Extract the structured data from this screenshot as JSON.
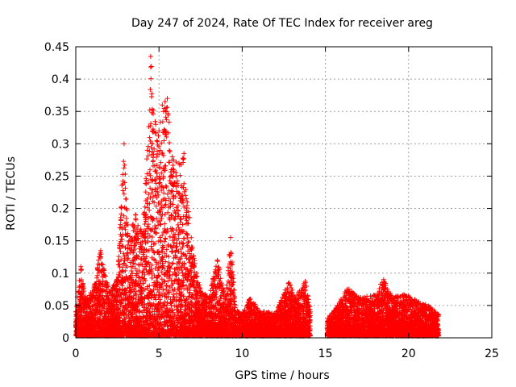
{
  "chart_data": {
    "type": "scatter",
    "title": "Day 247 of 2024, Rate Of TEC Index for receiver areg",
    "xlabel": "GPS time / hours",
    "ylabel": "ROTI / TECUs",
    "xlim": [
      0,
      25
    ],
    "ylim": [
      0,
      0.45
    ],
    "xticks": [
      0,
      5,
      10,
      15,
      20,
      25
    ],
    "yticks": [
      0,
      0.05,
      0.1,
      0.15,
      0.2,
      0.25,
      0.3,
      0.35,
      0.4,
      0.45
    ],
    "grid": true,
    "marker": "plus",
    "marker_color": "#ff0000",
    "envelope": {
      "description_points": [
        [
          0.0,
          0.04
        ],
        [
          0.3,
          0.11
        ],
        [
          0.6,
          0.06
        ],
        [
          1.0,
          0.07
        ],
        [
          1.5,
          0.135
        ],
        [
          2.0,
          0.07
        ],
        [
          2.5,
          0.09
        ],
        [
          2.9,
          0.3
        ],
        [
          3.2,
          0.15
        ],
        [
          3.6,
          0.19
        ],
        [
          4.0,
          0.16
        ],
        [
          4.3,
          0.29
        ],
        [
          4.5,
          0.435
        ],
        [
          4.8,
          0.33
        ],
        [
          5.0,
          0.32
        ],
        [
          5.2,
          0.36
        ],
        [
          5.5,
          0.37
        ],
        [
          5.8,
          0.28
        ],
        [
          6.2,
          0.27
        ],
        [
          6.5,
          0.285
        ],
        [
          7.0,
          0.14
        ],
        [
          7.5,
          0.07
        ],
        [
          8.0,
          0.06
        ],
        [
          8.5,
          0.12
        ],
        [
          9.0,
          0.06
        ],
        [
          9.3,
          0.155
        ],
        [
          9.6,
          0.04
        ],
        [
          10.0,
          0.035
        ],
        [
          10.5,
          0.06
        ],
        [
          11.0,
          0.04
        ],
        [
          12.0,
          0.035
        ],
        [
          12.8,
          0.085
        ],
        [
          13.2,
          0.06
        ],
        [
          13.8,
          0.085
        ],
        [
          14.1,
          0.04
        ],
        [
          15.2,
          0.03
        ],
        [
          15.8,
          0.05
        ],
        [
          16.3,
          0.075
        ],
        [
          17.0,
          0.06
        ],
        [
          18.0,
          0.065
        ],
        [
          18.5,
          0.09
        ],
        [
          19.0,
          0.06
        ],
        [
          19.8,
          0.065
        ],
        [
          20.5,
          0.055
        ],
        [
          21.3,
          0.045
        ],
        [
          21.8,
          0.035
        ]
      ],
      "data_gaps": [
        [
          14.1,
          15.1
        ]
      ]
    }
  }
}
